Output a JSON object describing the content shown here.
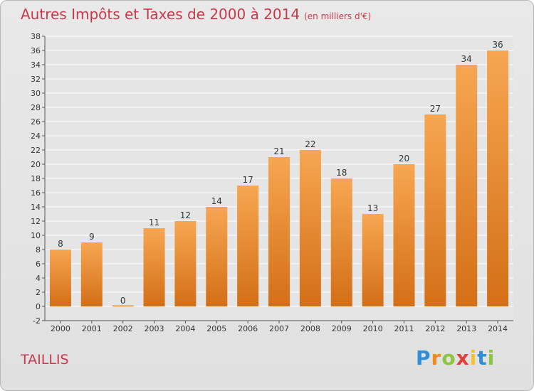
{
  "header": {
    "title": "Autres Impôts et Taxes de 2000 à 2014",
    "unit": "(en milliers d'€)"
  },
  "footer": {
    "commune": "TAILLIS",
    "logo_letters": [
      "P",
      "r",
      "o",
      "x",
      "i",
      "t",
      "i"
    ],
    "logo_colors": [
      "#2f8fd6",
      "#f08c1c",
      "#8cc63f",
      "#e0403a",
      "#f2c230",
      "#2f8fd6",
      "#8cc63f"
    ]
  },
  "colors": {
    "bar_top": "#f7a652",
    "bar_bottom": "#d36f17",
    "grid": "#ffffff",
    "title": "#c83a4b"
  },
  "chart_data": {
    "type": "bar",
    "title": "Autres Impôts et Taxes de 2000 à 2014",
    "ylim": [
      -2,
      38
    ],
    "yticks": [
      -2,
      0,
      2,
      4,
      6,
      8,
      10,
      12,
      14,
      16,
      18,
      20,
      22,
      24,
      26,
      28,
      30,
      32,
      34,
      36,
      38
    ],
    "grid": true,
    "categories": [
      "2000",
      "2001",
      "2002",
      "2003",
      "2004",
      "2005",
      "2006",
      "2007",
      "2008",
      "2009",
      "2010",
      "2011",
      "2012",
      "2013",
      "2014"
    ],
    "values": [
      8,
      9,
      0,
      11,
      12,
      14,
      17,
      21,
      22,
      18,
      13,
      20,
      27,
      34,
      36
    ]
  }
}
